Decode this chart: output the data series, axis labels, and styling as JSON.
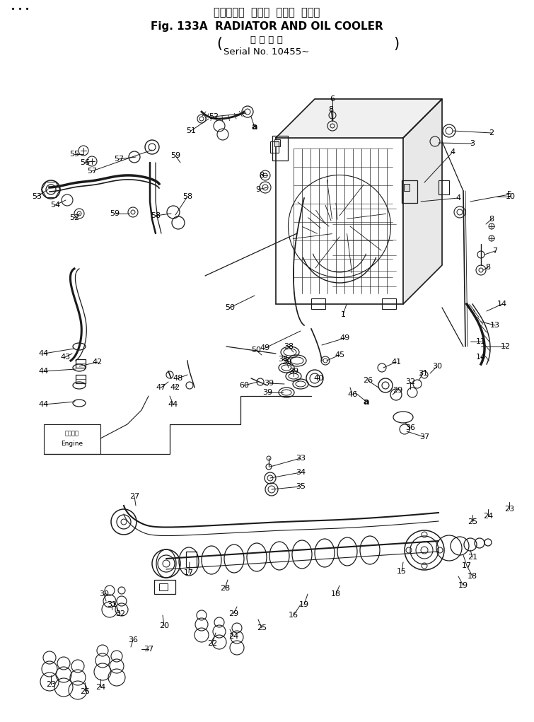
{
  "title_japanese": "ラジェータ  および  オイル  クーラ",
  "title_english": "Fig. 133A  RADIATOR AND OIL COOLER",
  "subtitle_japanese": "適 用 号 機",
  "subtitle_serial": "Serial No. 10455~",
  "bg_color": "#ffffff",
  "line_color": "#1a1a1a",
  "fig_width": 7.55,
  "fig_height": 10.21,
  "dpi": 100
}
